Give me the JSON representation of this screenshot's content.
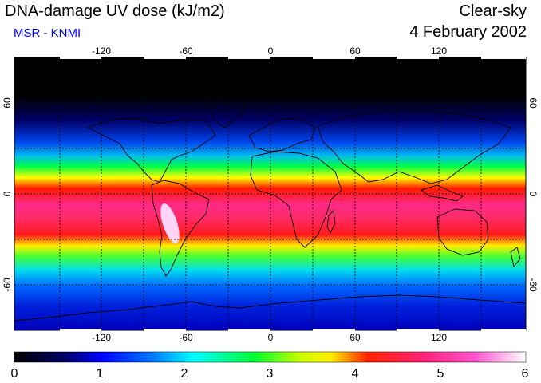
{
  "header": {
    "title": "DNA-damage UV dose (kJ/m2)",
    "credit": "MSR - KNMI",
    "sky_condition": "Clear-sky",
    "date": "4 February 2002"
  },
  "map": {
    "lon_ticks": [
      "-120",
      "-60",
      "0",
      "60",
      "120"
    ],
    "lat_ticks": [
      "60",
      "0",
      "-60"
    ],
    "lon_range": [
      -180,
      180
    ],
    "lat_range": [
      -90,
      90
    ]
  },
  "colorbar": {
    "labels": [
      "0",
      "1",
      "2",
      "3",
      "4",
      "5",
      "6"
    ],
    "colors": [
      "#000000",
      "#0000aa",
      "#0055ff",
      "#00ffff",
      "#00ff33",
      "#ffff00",
      "#ff0000",
      "#ff1a66",
      "#ff55cc",
      "#ffffff"
    ]
  }
}
